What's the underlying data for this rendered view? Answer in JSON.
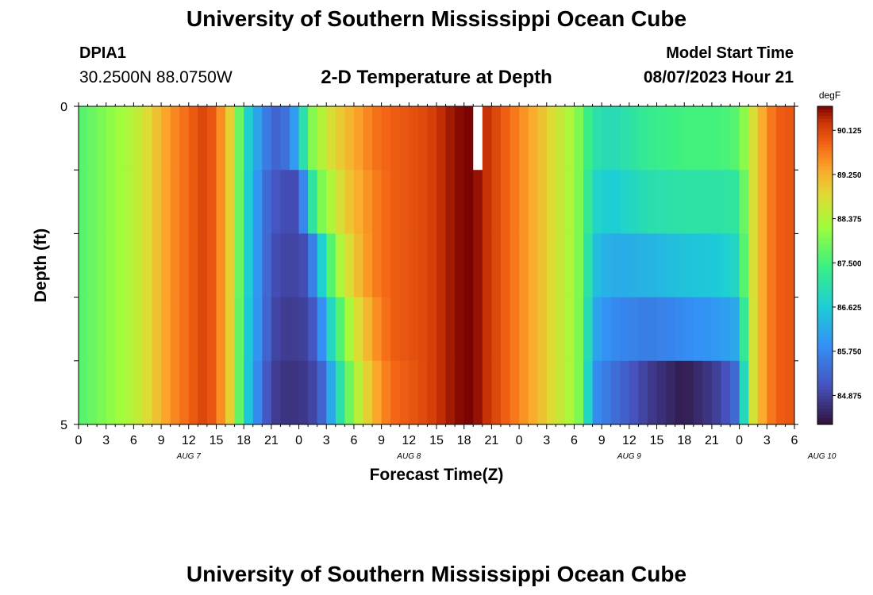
{
  "header": {
    "title": "University of Southern Mississippi Ocean Cube",
    "station_id": "DPIA1",
    "station_coords": "30.2500N  88.0750W",
    "plot_title": "2-D Temperature at Depth",
    "model_start_label": "Model Start Time",
    "model_start_value": "08/07/2023 Hour 21"
  },
  "footer": {
    "title": "University of Southern Mississippi Ocean Cube"
  },
  "chart_data": {
    "type": "heatmap",
    "xlabel": "Forecast Time(Z)",
    "ylabel": "Depth (ft)",
    "colorbar_unit": "degF",
    "colorbar_ticks": [
      "90.125",
      "89.250",
      "88.375",
      "87.500",
      "86.625",
      "85.750",
      "84.875"
    ],
    "color_range": [
      84.3,
      90.6
    ],
    "x_tick_labels": [
      "0",
      "3",
      "6",
      "9",
      "12",
      "15",
      "18",
      "21",
      "0",
      "3",
      "6",
      "9",
      "12",
      "15",
      "18",
      "21",
      "0",
      "3",
      "6",
      "9",
      "12",
      "15",
      "18",
      "21",
      "0",
      "3",
      "6"
    ],
    "x_hours": [
      0,
      78
    ],
    "date_labels": [
      {
        "label": "AUG 7",
        "hour": 12
      },
      {
        "label": "AUG 8",
        "hour": 36
      },
      {
        "label": "AUG 9",
        "hour": 60
      },
      {
        "label": "AUG 10",
        "hour": 81
      }
    ],
    "depth_tick_labels": [
      "0",
      "5"
    ],
    "depth_range": [
      0,
      5
    ],
    "depth_levels": 5,
    "gap_hour": 43,
    "profile_hours": [
      0,
      6,
      10,
      14,
      16,
      17,
      18,
      20,
      21,
      22,
      24,
      25,
      26,
      27,
      28,
      30,
      32,
      34,
      38,
      40,
      42,
      43,
      44,
      46,
      48,
      50,
      52,
      54,
      55,
      56,
      58,
      62,
      66,
      70,
      72,
      73,
      74,
      76,
      78
    ],
    "profiles": [
      [
        87.6,
        87.6,
        87.6,
        87.6,
        87.6
      ],
      [
        88.4,
        88.4,
        88.4,
        88.4,
        88.4
      ],
      [
        89.5,
        89.5,
        89.5,
        89.5,
        89.5
      ],
      [
        90.2,
        90.2,
        90.2,
        90.2,
        90.2
      ],
      [
        89.3,
        89.3,
        89.3,
        89.3,
        89.3
      ],
      [
        88.6,
        88.6,
        88.6,
        88.6,
        88.6
      ],
      [
        87.0,
        87.0,
        87.0,
        86.9,
        86.9
      ],
      [
        85.8,
        85.6,
        85.6,
        85.6,
        85.4
      ],
      [
        85.4,
        85.2,
        85.1,
        85.0,
        84.9
      ],
      [
        85.2,
        85.0,
        84.9,
        84.8,
        84.7
      ],
      [
        86.3,
        85.0,
        84.9,
        84.8,
        84.7
      ],
      [
        87.8,
        86.5,
        85.1,
        84.9,
        84.8
      ],
      [
        88.2,
        87.8,
        86.2,
        85.3,
        85.0
      ],
      [
        88.6,
        88.1,
        87.2,
        86.4,
        85.6
      ],
      [
        88.9,
        88.6,
        88.1,
        87.3,
        86.7
      ],
      [
        89.3,
        89.2,
        89.0,
        88.6,
        88.2
      ],
      [
        89.7,
        89.6,
        89.6,
        89.4,
        89.2
      ],
      [
        89.9,
        89.9,
        89.9,
        89.9,
        89.8
      ],
      [
        90.1,
        90.1,
        90.1,
        90.1,
        90.1
      ],
      [
        90.4,
        90.4,
        90.4,
        90.4,
        90.4
      ],
      [
        90.6,
        90.6,
        90.6,
        90.6,
        90.6
      ],
      [
        90.6,
        90.6,
        90.6,
        90.6,
        90.6
      ],
      [
        90.4,
        90.4,
        90.4,
        90.4,
        90.4
      ],
      [
        90.0,
        90.0,
        90.0,
        90.0,
        90.0
      ],
      [
        89.6,
        89.6,
        89.6,
        89.6,
        89.6
      ],
      [
        89.2,
        89.2,
        89.2,
        89.2,
        89.2
      ],
      [
        88.7,
        88.7,
        88.7,
        88.7,
        88.7
      ],
      [
        88.2,
        88.2,
        88.2,
        88.2,
        88.2
      ],
      [
        87.7,
        87.7,
        87.7,
        87.7,
        87.7
      ],
      [
        87.1,
        86.8,
        86.5,
        86.2,
        85.9
      ],
      [
        86.9,
        86.6,
        86.2,
        85.8,
        85.5
      ],
      [
        87.3,
        87.0,
        86.3,
        85.6,
        84.8
      ],
      [
        87.5,
        87.1,
        86.5,
        85.8,
        84.4
      ],
      [
        87.5,
        87.1,
        86.6,
        86.0,
        84.9
      ],
      [
        87.7,
        87.2,
        86.9,
        86.2,
        85.5
      ],
      [
        88.4,
        88.4,
        88.4,
        88.3,
        88.3
      ],
      [
        89.1,
        89.1,
        89.1,
        89.1,
        89.1
      ],
      [
        89.9,
        89.9,
        89.9,
        89.9,
        89.9
      ],
      [
        90.0,
        90.0,
        90.0,
        90.0,
        90.0
      ]
    ]
  }
}
